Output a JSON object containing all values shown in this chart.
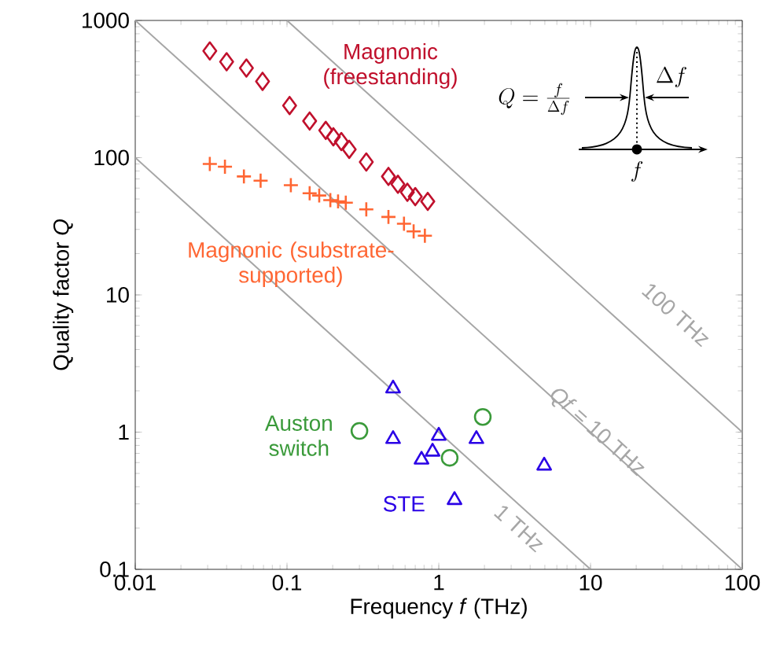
{
  "chart_data": {
    "type": "scatter",
    "xlabel": "Frequency *f* (THz)",
    "ylabel": "Quality factor *Q*",
    "log": "xy",
    "xlim": [
      0.01,
      100
    ],
    "ylim": [
      0.1,
      1000
    ],
    "xticks": [
      0.01,
      0.1,
      1,
      10,
      100
    ],
    "yticks": [
      0.1,
      1,
      10,
      100,
      1000
    ],
    "grid": false,
    "legend": false,
    "annotations": [
      "Q = \\frac{f}{\\Delta f}",
      "\\Delta f",
      "f"
    ],
    "series": [
      {
        "name": "Magnonic (freestanding)",
        "marker": "diamond",
        "color": "#c0102c",
        "x": [
          0.031,
          0.04,
          0.054,
          0.069,
          0.104,
          0.141,
          0.18,
          0.202,
          0.228,
          0.257,
          0.333,
          0.466,
          0.538,
          0.621,
          0.7,
          0.846
        ],
        "values": [
          600,
          500,
          450,
          360,
          240,
          185,
          158,
          142,
          131,
          115,
          93,
          73,
          64,
          56,
          52,
          48
        ]
      },
      {
        "name": "Magnonic (substrate-supported)",
        "marker": "cross",
        "color": "#ff6633",
        "x": [
          0.031,
          0.039,
          0.052,
          0.067,
          0.106,
          0.141,
          0.163,
          0.193,
          0.217,
          0.244,
          0.333,
          0.466,
          0.59,
          0.683,
          0.81
        ],
        "values": [
          90,
          86,
          73,
          68,
          63,
          55,
          53,
          49,
          48,
          47,
          42,
          37,
          33,
          29,
          27
        ]
      },
      {
        "name": "STE",
        "marker": "triangle",
        "color": "#2a00e6",
        "x": [
          0.5,
          0.5,
          0.77,
          0.91,
          1.0,
          1.77,
          1.27,
          4.95
        ],
        "values": [
          2.08,
          0.89,
          0.63,
          0.72,
          0.94,
          0.89,
          0.32,
          0.57
        ]
      },
      {
        "name": "Auston switch",
        "marker": "circle",
        "color": "#3a9a3a",
        "x": [
          0.3,
          1.95,
          1.18
        ],
        "values": [
          1.02,
          1.29,
          0.65
        ]
      },
      {
        "name": "1 THz",
        "type": "line",
        "marker": "none",
        "color": "#a6a6a6",
        "x": [
          0.01,
          10
        ],
        "values": [
          100,
          0.1
        ]
      },
      {
        "name": "*Qf* = 10 THz",
        "type": "line",
        "marker": "none",
        "color": "#a6a6a6",
        "x": [
          0.01,
          100
        ],
        "values": [
          1000,
          0.1
        ]
      },
      {
        "name": "100 THz",
        "type": "line",
        "marker": "none",
        "color": "#a6a6a6",
        "x": [
          0.1,
          100
        ],
        "values": [
          1000,
          1
        ]
      }
    ]
  }
}
